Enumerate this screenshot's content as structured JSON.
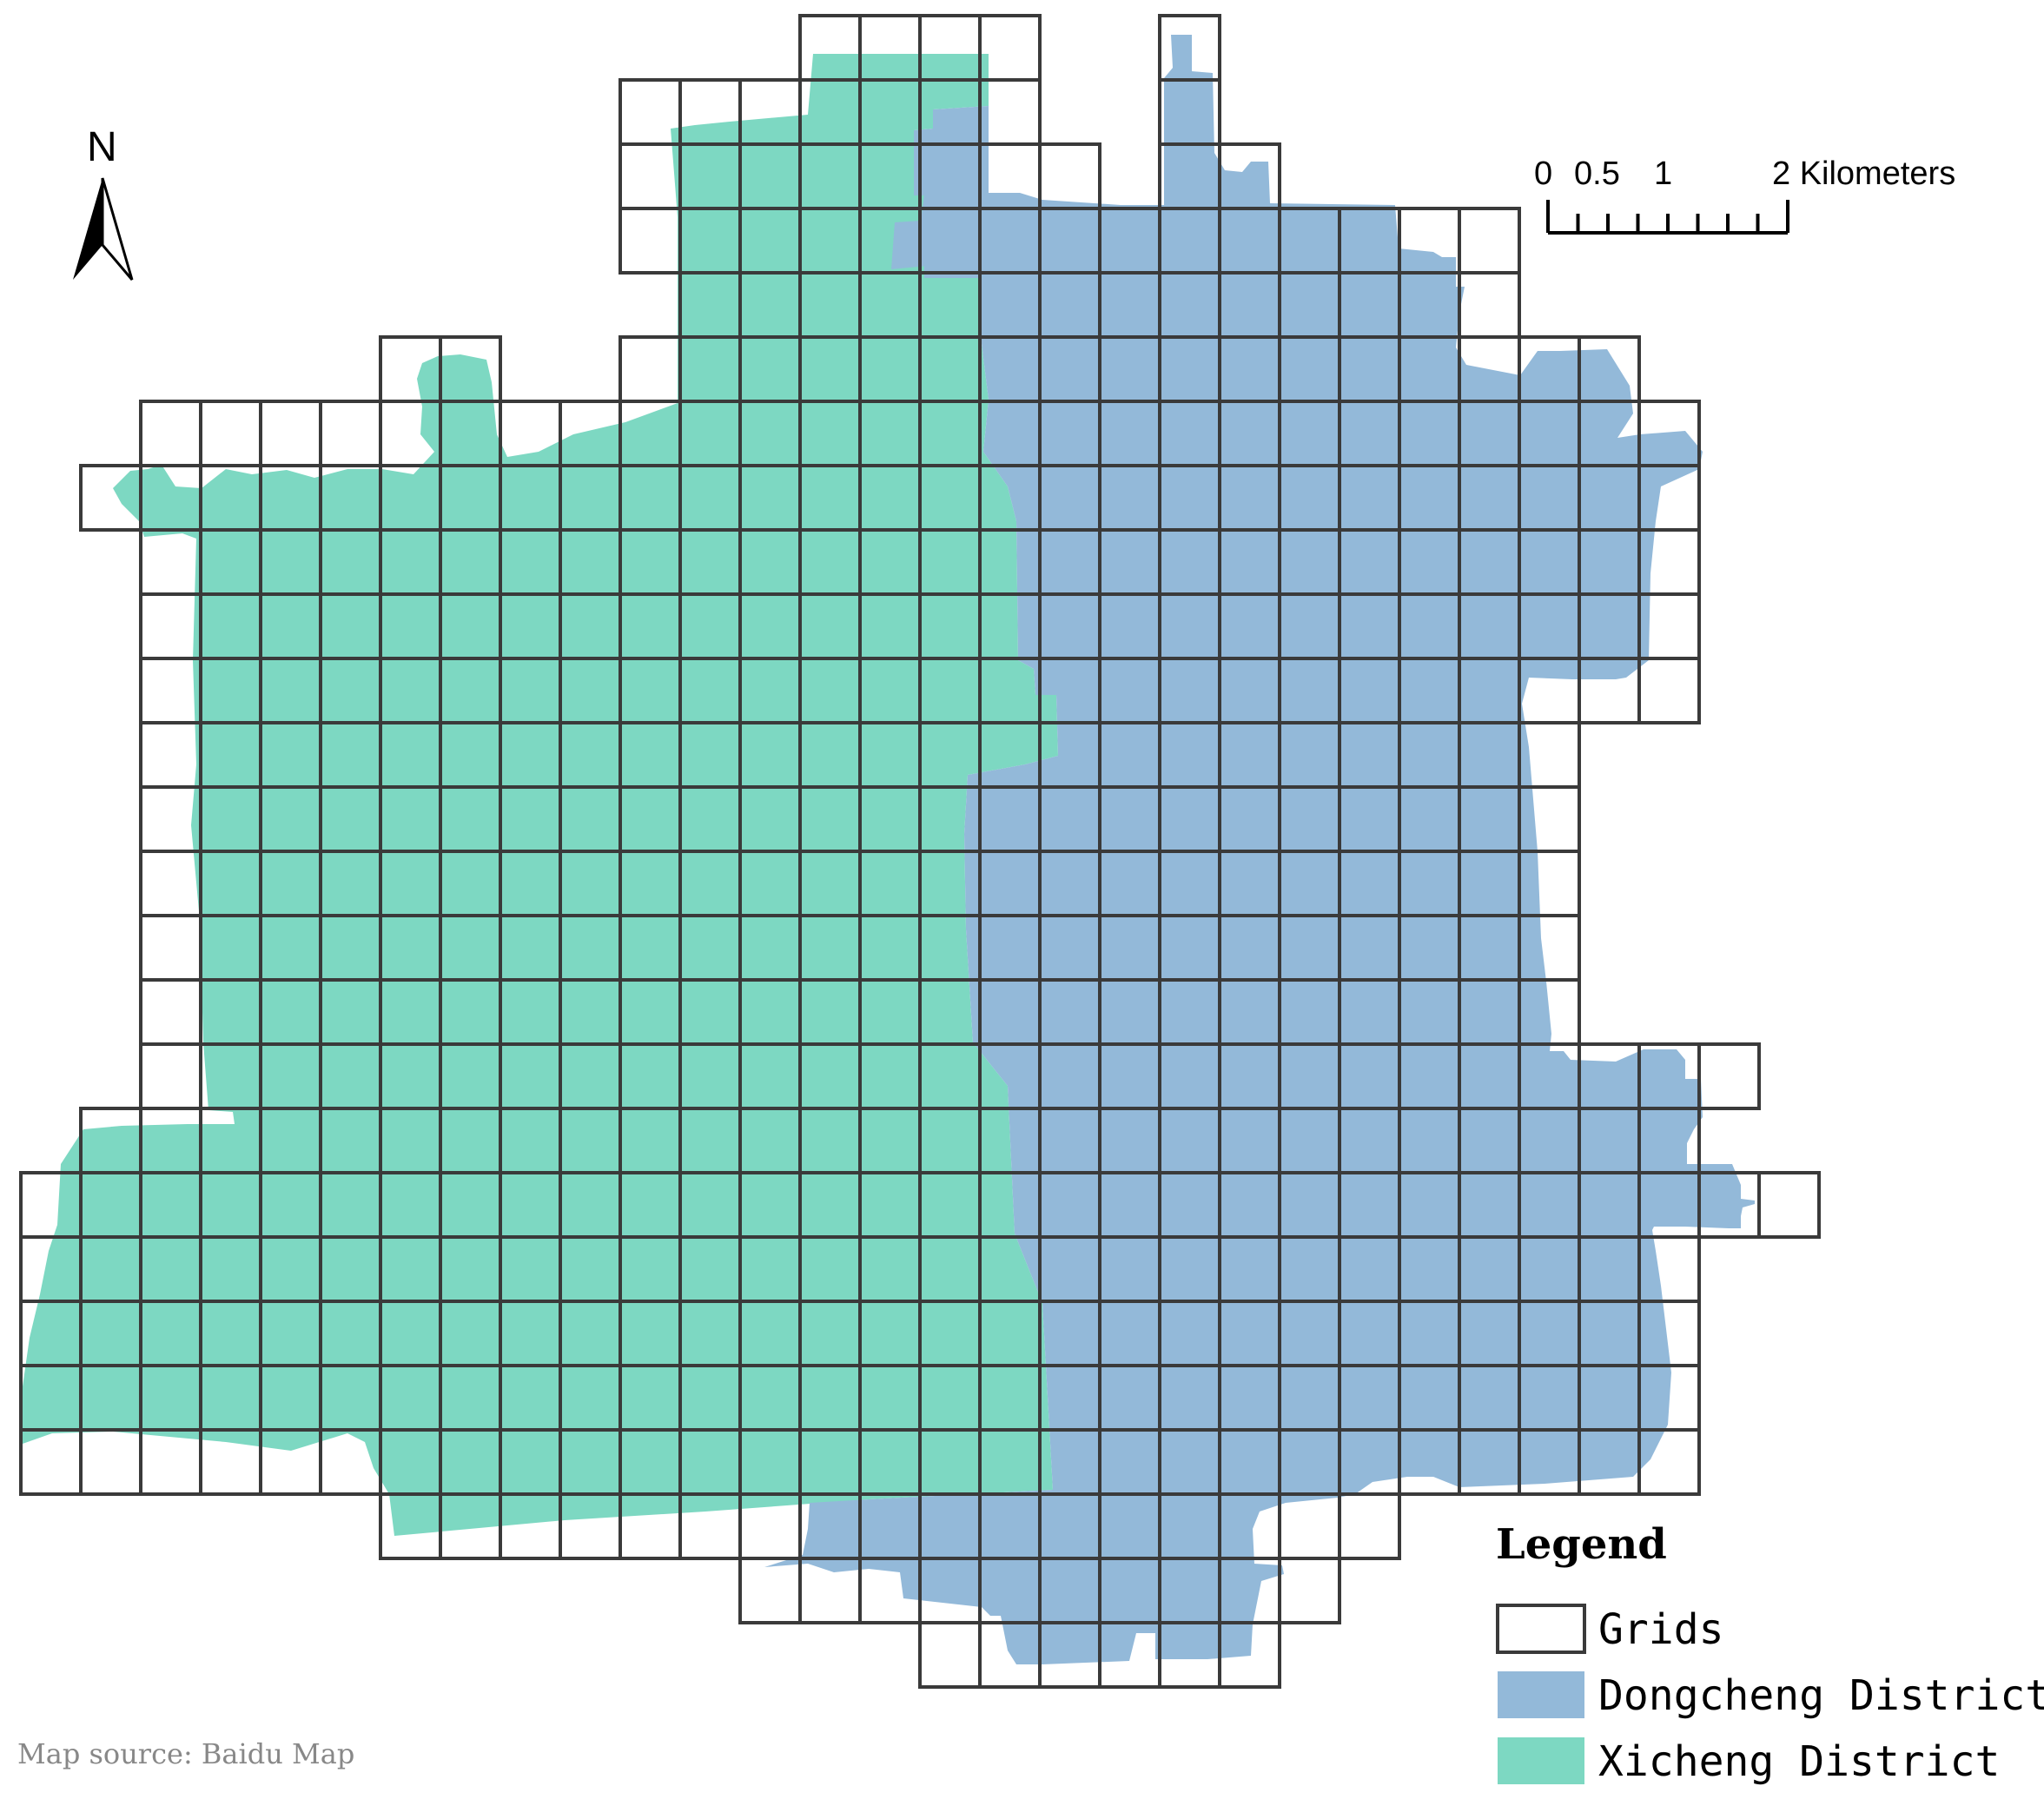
{
  "north_arrow": {
    "label": "N",
    "icon": "north-arrow-icon"
  },
  "scale_bar": {
    "ticks": [
      "0",
      "0.5",
      "1"
    ],
    "end_label": "2 Kilometers"
  },
  "legend": {
    "title": "Legend",
    "items": [
      {
        "label": "Grids",
        "fill": "#ffffff",
        "stroke": "#3a3a3a"
      },
      {
        "label": "Dongcheng District",
        "fill": "#93b9d9",
        "stroke": "#93b9d9"
      },
      {
        "label": "Xicheng District",
        "fill": "#7dd8c2",
        "stroke": "#7dd8c2"
      }
    ]
  },
  "source_note": "Map source: Baidu Map",
  "colors": {
    "grid_line": "#3a3a3a",
    "dongcheng": "#93b9d9",
    "xicheng": "#7dd8c2"
  }
}
